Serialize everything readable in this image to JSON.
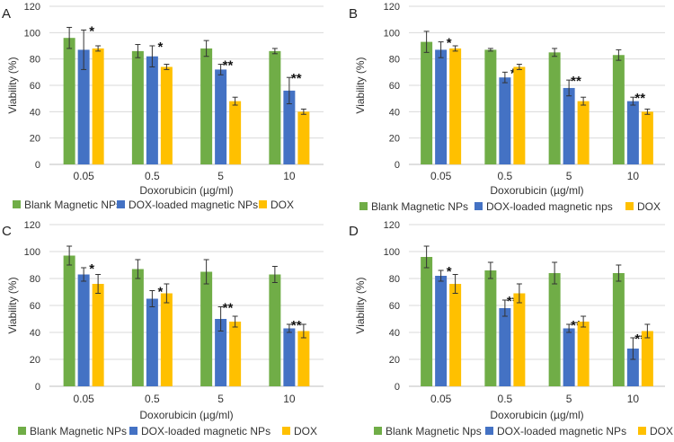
{
  "colors": {
    "blank": "#70ad47",
    "dox_loaded": "#4472c4",
    "dox": "#ffc000"
  },
  "chart_data": [
    {
      "type": "bar",
      "panel": "A",
      "xlabel": "Doxorubicin (µg/ml)",
      "ylabel": "Viability (%)",
      "ylim": [
        0,
        120
      ],
      "yticks": [
        0,
        20,
        40,
        60,
        80,
        100,
        120
      ],
      "grid": true,
      "categories": [
        "0.05",
        "0.5",
        "5",
        "10"
      ],
      "series": [
        {
          "name": "Blank Magnetic NPs",
          "color_key": "blank",
          "values": [
            96,
            86,
            88,
            86
          ],
          "errors": [
            8,
            5,
            6,
            2
          ],
          "marks": [
            "",
            "",
            "",
            ""
          ]
        },
        {
          "name": "DOX-loaded magnetic NPs",
          "color_key": "dox_loaded",
          "values": [
            87,
            82,
            72,
            56
          ],
          "errors": [
            15,
            8,
            4,
            10
          ],
          "marks": [
            "*",
            "*",
            "**",
            "**"
          ]
        },
        {
          "name": "DOX",
          "color_key": "dox",
          "values": [
            88,
            74,
            48,
            40
          ],
          "errors": [
            2,
            2,
            3,
            2
          ],
          "marks": [
            "",
            "",
            "",
            ""
          ]
        }
      ]
    },
    {
      "type": "bar",
      "panel": "B",
      "xlabel": "Doxorubicin (µg/ml)",
      "ylabel": "Viability (%)",
      "ylim": [
        0,
        120
      ],
      "yticks": [
        0,
        20,
        40,
        60,
        80,
        100,
        120
      ],
      "grid": true,
      "categories": [
        "0.05",
        "0.5",
        "5",
        "10"
      ],
      "series": [
        {
          "name": "Blank Magnetic NPs",
          "color_key": "blank",
          "values": [
            93,
            87,
            85,
            83
          ],
          "errors": [
            8,
            1,
            3,
            4
          ],
          "marks": [
            "",
            "",
            "",
            ""
          ]
        },
        {
          "name": "DOX-loaded magnetic nps",
          "color_key": "dox_loaded",
          "values": [
            87,
            66,
            58,
            48
          ],
          "errors": [
            6,
            4,
            6,
            3
          ],
          "marks": [
            "*",
            "*",
            "**",
            "**"
          ]
        },
        {
          "name": "DOX",
          "color_key": "dox",
          "values": [
            88,
            74,
            48,
            40
          ],
          "errors": [
            2,
            2,
            3,
            2
          ],
          "marks": [
            "",
            "",
            "",
            ""
          ]
        }
      ]
    },
    {
      "type": "bar",
      "panel": "C",
      "xlabel": "Doxorubicin (µg/ml)",
      "ylabel": "Viability (%)",
      "ylim": [
        0,
        120
      ],
      "yticks": [
        0,
        20,
        40,
        60,
        80,
        100,
        120
      ],
      "grid": true,
      "categories": [
        "0.05",
        "0.5",
        "5",
        "10"
      ],
      "series": [
        {
          "name": "Blank Magnetic NPs",
          "color_key": "blank",
          "values": [
            97,
            87,
            85,
            83
          ],
          "errors": [
            7,
            7,
            9,
            6
          ],
          "marks": [
            "",
            "",
            "",
            ""
          ]
        },
        {
          "name": "DOX-loaded magnetic NPs",
          "color_key": "dox_loaded",
          "values": [
            83,
            65,
            50,
            43
          ],
          "errors": [
            5,
            6,
            9,
            3
          ],
          "marks": [
            "*",
            "*",
            "**",
            "**"
          ]
        },
        {
          "name": "DOX",
          "color_key": "dox",
          "values": [
            76,
            69,
            48,
            41
          ],
          "errors": [
            7,
            7,
            4,
            5
          ],
          "marks": [
            "",
            "",
            "",
            ""
          ]
        }
      ]
    },
    {
      "type": "bar",
      "panel": "D",
      "xlabel": "Doxorubicin (µg/ml)",
      "ylabel": "Viability (%)",
      "ylim": [
        0,
        120
      ],
      "yticks": [
        0,
        20,
        40,
        60,
        80,
        100,
        120
      ],
      "grid": true,
      "categories": [
        "0.05",
        "0.5",
        "5",
        "10"
      ],
      "series": [
        {
          "name": "Blank Magnetic Nps",
          "color_key": "blank",
          "values": [
            96,
            86,
            84,
            84
          ],
          "errors": [
            8,
            6,
            8,
            6
          ],
          "marks": [
            "",
            "",
            "",
            ""
          ]
        },
        {
          "name": "DOX-loaded magnetic NPs",
          "color_key": "dox_loaded",
          "values": [
            82,
            58,
            43,
            28
          ],
          "errors": [
            4,
            6,
            3,
            8
          ],
          "marks": [
            "*",
            "**",
            "**",
            "**"
          ]
        },
        {
          "name": "DOX",
          "color_key": "dox",
          "values": [
            76,
            69,
            48,
            41
          ],
          "errors": [
            7,
            7,
            4,
            5
          ],
          "marks": [
            "",
            "",
            "",
            ""
          ]
        }
      ]
    }
  ]
}
